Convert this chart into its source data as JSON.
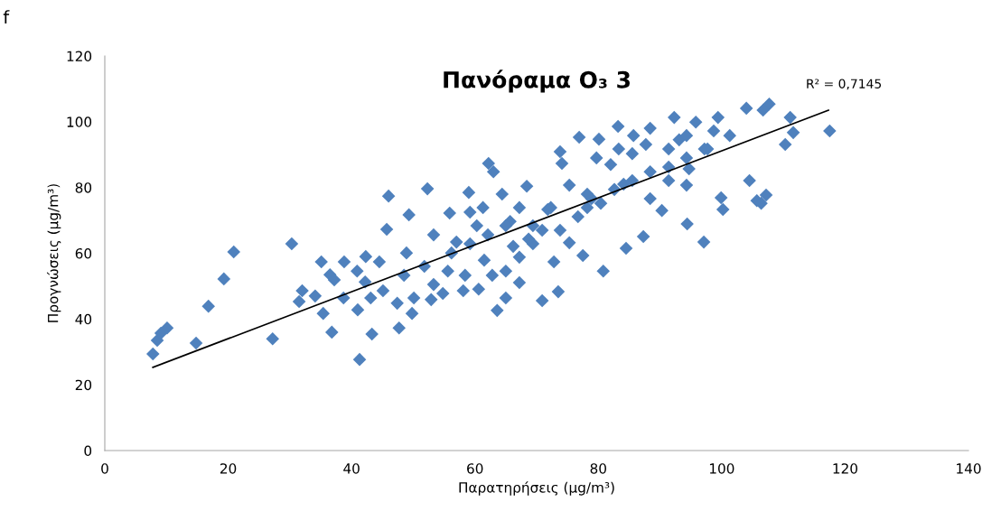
{
  "chart_data": {
    "type": "scatter",
    "title": "Πανόραμα O₃ 3",
    "xlabel": "Παρατηρήσεις (μg/m³)",
    "ylabel": "Προγνώσεις (μg/m³)",
    "xlim": [
      0,
      140
    ],
    "ylim": [
      0,
      120
    ],
    "xticks": [
      0,
      20,
      40,
      60,
      80,
      100,
      120,
      140
    ],
    "yticks": [
      0,
      20,
      40,
      60,
      80,
      100,
      120
    ],
    "grid": false,
    "legend": false,
    "marker": "diamond",
    "annotations": [
      "f",
      "R² = 0,7145"
    ],
    "series": [
      {
        "color": "#4f81bd",
        "x": [
          7.8,
          8.5,
          9.1,
          10.1,
          14.8,
          16.8,
          19.3,
          20.9,
          27.2,
          30.3,
          31.5,
          32,
          34.1,
          35.1,
          35.4,
          36.5,
          36.8,
          38.8,
          41,
          41.3,
          42.2,
          42.3,
          43.3,
          45.1,
          45.7,
          46,
          47.7,
          48.5,
          49.3,
          49.8,
          51.8,
          52.3,
          52.9,
          55.6,
          55.9,
          57,
          58.1,
          59,
          60.3,
          61.5,
          62.2,
          63,
          63.6,
          64.4,
          66.2,
          67.2,
          68.4,
          69.4,
          70.9,
          71.8,
          72.8,
          73.5,
          73.8,
          74.1,
          75.3,
          76.9,
          77.5,
          78.9,
          79.7,
          80.1,
          80.8,
          82,
          83.2,
          84.1,
          84.5,
          85.7,
          87.3,
          87.7,
          88.4,
          90.3,
          91.4,
          92.3,
          93.1,
          94.4,
          94.7,
          95.8,
          97.1,
          97.7,
          99.4,
          99.9,
          100.2,
          101.3,
          104,
          104.5,
          105.7,
          106.4,
          107.2,
          107.7,
          106.7,
          110.3,
          111.1,
          111.6,
          117.5,
          47.4,
          50.1,
          53.3,
          54.8,
          58.4,
          60.6,
          62.8,
          65,
          65,
          67.2,
          68.7,
          70.9,
          73.8,
          76.7,
          78.2,
          80.4,
          82.6,
          85.5,
          88.4,
          91.4,
          94.3,
          97.2,
          98.7,
          40.9,
          43.1,
          44.5,
          38.7,
          37.2,
          48.9,
          56.2,
          59.2,
          62.1,
          65.7,
          69.4,
          72.3,
          75.3,
          78.2,
          85.5,
          88.4,
          94.3,
          91.4,
          94.3,
          83.3,
          65,
          61.3,
          67.2,
          59.2,
          53.3
        ],
        "values": [
          29.4,
          33.5,
          35.7,
          37.3,
          32.7,
          43.9,
          52.2,
          60.4,
          34,
          62.9,
          45.3,
          48.6,
          47,
          57.4,
          41.7,
          53.5,
          36,
          57.4,
          42.8,
          27.7,
          51.3,
          59,
          35.4,
          48.6,
          67.3,
          77.4,
          37.3,
          53.3,
          71.7,
          41.7,
          56,
          79.6,
          45.9,
          54.6,
          72.2,
          63.4,
          48.6,
          78.5,
          68.4,
          57.9,
          87.3,
          84.8,
          42.6,
          78,
          62.1,
          51.1,
          80.4,
          62.9,
          45.6,
          73.3,
          57.4,
          48.3,
          90.9,
          87.3,
          63.2,
          95.3,
          59.3,
          76.6,
          89,
          94.7,
          54.6,
          87,
          98.6,
          81,
          61.5,
          95.8,
          65.1,
          93.1,
          76.6,
          73,
          91.7,
          101.3,
          94.5,
          68.9,
          85.7,
          99.9,
          63.4,
          91.7,
          101.3,
          76.9,
          73.3,
          95.8,
          104.1,
          82.1,
          76,
          75.2,
          77.7,
          105.4,
          103.5,
          93.1,
          101.3,
          96.7,
          97.2,
          44.8,
          46.4,
          50.5,
          47.8,
          53.3,
          49.1,
          53.3,
          46.4,
          54.6,
          58.8,
          64.3,
          67,
          67,
          71.1,
          73.9,
          75.2,
          79.4,
          82.1,
          84.8,
          86.2,
          89,
          91.7,
          97.2,
          54.6,
          46.4,
          57.4,
          46.4,
          51.9,
          60.1,
          60.1,
          62.9,
          65.6,
          69.7,
          68.4,
          73.9,
          80.7,
          78,
          90.3,
          98,
          95.8,
          82.1,
          80.7,
          91.7,
          68.4,
          73.9,
          73.9,
          72.5,
          65.6
        ]
      },
      {
        "type": "line",
        "marker": "none",
        "color": "#000000",
        "x": [
          7.8,
          117.3
        ],
        "values": [
          25.3,
          103.5
        ]
      }
    ]
  }
}
